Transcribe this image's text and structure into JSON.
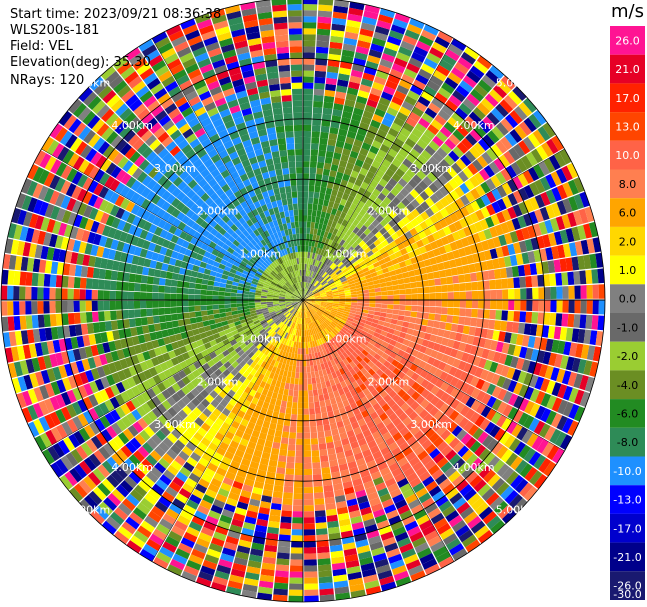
{
  "header": {
    "start_time": "Start time: 2023/09/21 08:36:38",
    "site": "WLS200s-181",
    "field": "Field: VEL",
    "elevation": "Elevation(deg): 35.30",
    "nrays": "NRays: 120"
  },
  "chart_data": {
    "type": "ppi",
    "field": "VEL",
    "unit": "m/s",
    "n_rays": 120,
    "max_range_km": 5.0,
    "range_rings_km": [
      1.0,
      2.0,
      3.0,
      4.0,
      5.0
    ],
    "range_labels": [
      "1.00km",
      "2.00km",
      "3.00km",
      "4.00km",
      "5.00km"
    ],
    "inner_signal_radius_km": 3.1,
    "colorbar": {
      "ticks": [
        "26.0",
        "21.0",
        "17.0",
        "13.0",
        "10.0",
        "8.0",
        "6.0",
        "2.0",
        "1.0",
        "0.0",
        "-1.0",
        "-2.0",
        "-4.0",
        "-6.0",
        "-8.0",
        "-10.0",
        "-13.0",
        "-17.0",
        "-21.0",
        "-26.0",
        "-30.0"
      ],
      "colors": [
        "#ff1493",
        "#e60026",
        "#ff2200",
        "#ff4500",
        "#ff6347",
        "#ff7f50",
        "#ffa500",
        "#ffd700",
        "#ffff00",
        "#808080",
        "#696969",
        "#9acd32",
        "#6b8e23",
        "#228b22",
        "#2e8b57",
        "#1e90ff",
        "#0000ff",
        "#0000cd",
        "#00008b",
        "#191970"
      ]
    },
    "wind_pattern": {
      "description_sectors": [
        {
          "from_deg": 200,
          "to_deg": 320,
          "velocity_ms": -9
        },
        {
          "from_deg": 320,
          "to_deg": 20,
          "velocity_ms": -7
        },
        {
          "from_deg": 20,
          "to_deg": 80,
          "velocity_ms": -3
        },
        {
          "from_deg": 80,
          "to_deg": 120,
          "velocity_ms": 2
        },
        {
          "from_deg": 120,
          "to_deg": 200,
          "velocity_ms": 8
        }
      ]
    }
  }
}
